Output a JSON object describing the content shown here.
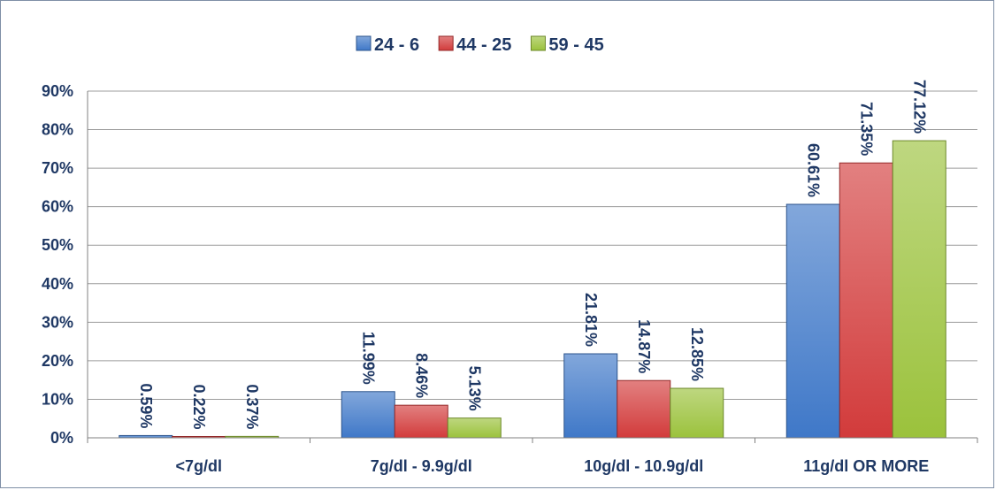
{
  "chart_data": {
    "type": "bar",
    "categories": [
      "<7g/dl",
      "7g/dl - 9.9g/dl",
      "10g/dl - 10.9g/dl",
      "11g/dl OR MORE"
    ],
    "series": [
      {
        "name": "24 - 6",
        "color": "#3f78c8",
        "values": [
          0.59,
          11.99,
          21.81,
          60.61
        ],
        "labels": [
          "0.59%",
          "11.99%",
          "21.81%",
          "60.61%"
        ]
      },
      {
        "name": "44 - 25",
        "color": "#d23b3b",
        "values": [
          0.22,
          8.46,
          14.87,
          71.35
        ],
        "labels": [
          "0.22%",
          "8.46%",
          "14.87%",
          "71.35%"
        ]
      },
      {
        "name": "59 - 45",
        "color": "#9bc23c",
        "values": [
          0.37,
          5.13,
          12.85,
          77.12
        ],
        "labels": [
          "0.37%",
          "5.13%",
          "12.85%",
          "77.12%"
        ]
      }
    ],
    "ylim": [
      0,
      90
    ],
    "yticks": [
      0,
      10,
      20,
      30,
      40,
      50,
      60,
      70,
      80,
      90
    ],
    "ytick_labels": [
      "0%",
      "10%",
      "20%",
      "30%",
      "40%",
      "50%",
      "60%",
      "70%",
      "80%",
      "90%"
    ],
    "title": "",
    "xlabel": "",
    "ylabel": "",
    "grid": true,
    "legend_position": "top-center"
  }
}
